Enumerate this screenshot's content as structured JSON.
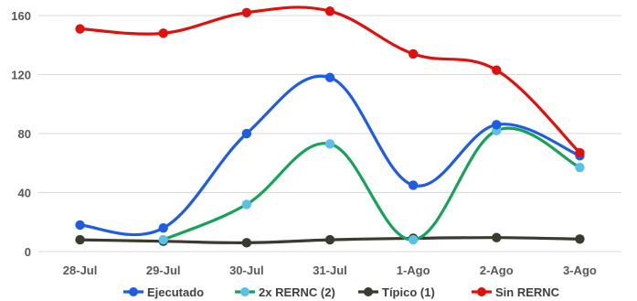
{
  "chart_data": {
    "type": "line",
    "categories": [
      "28-Jul",
      "29-Jul",
      "30-Jul",
      "31-Jul",
      "1-Ago",
      "2-Ago",
      "3-Ago"
    ],
    "yticks": [
      0,
      40,
      80,
      120,
      160
    ],
    "ylim": [
      0,
      160
    ],
    "grid": "horizontal",
    "legend_position": "bottom",
    "series": [
      {
        "name": "Ejecutado",
        "color": "#1f5ce6",
        "marker_color": "#1f5ce6",
        "values": [
          18,
          16,
          80,
          118,
          45,
          86,
          65
        ]
      },
      {
        "name": "2x RERNC (2)",
        "color": "#15a35a",
        "marker_color": "#5bc0e8",
        "values": [
          null,
          8,
          32,
          73,
          8,
          82,
          57
        ]
      },
      {
        "name": "Típico (1)",
        "color": "#3a3a2e",
        "marker_color": "#3a3a2e",
        "values": [
          8,
          7,
          6,
          8,
          9,
          9.5,
          8.5
        ]
      },
      {
        "name": "Sin RERNC",
        "color": "#e0110d",
        "marker_color": "#e0110d",
        "values": [
          151,
          148,
          162,
          163,
          134,
          123,
          67
        ]
      }
    ]
  }
}
